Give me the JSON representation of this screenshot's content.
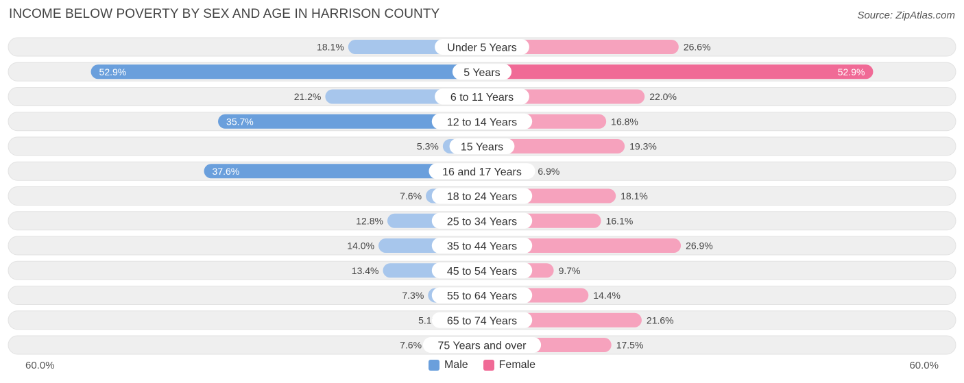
{
  "title": "INCOME BELOW POVERTY BY SEX AND AGE IN HARRISON COUNTY",
  "source": "Source: ZipAtlas.com",
  "colors": {
    "male_dark": "#6a9fdc",
    "male_light": "#a7c6ec",
    "female_dark": "#f06a96",
    "female_light": "#f6a2bd",
    "row_bg": "#efefef"
  },
  "chart_data": {
    "type": "bar",
    "orientation": "horizontal-diverging",
    "title": "INCOME BELOW POVERTY BY SEX AND AGE IN HARRISON COUNTY",
    "categories": [
      "Under 5 Years",
      "5 Years",
      "6 to 11 Years",
      "12 to 14 Years",
      "15 Years",
      "16 and 17 Years",
      "18 to 24 Years",
      "25 to 34 Years",
      "35 to 44 Years",
      "45 to 54 Years",
      "55 to 64 Years",
      "65 to 74 Years",
      "75 Years and over"
    ],
    "series": [
      {
        "name": "Male",
        "values": [
          18.1,
          52.9,
          21.2,
          35.7,
          5.3,
          37.6,
          7.6,
          12.8,
          14.0,
          13.4,
          7.3,
          5.1,
          7.6
        ],
        "labels": [
          "18.1%",
          "52.9%",
          "21.2%",
          "35.7%",
          "5.3%",
          "37.6%",
          "7.6%",
          "12.8%",
          "14.0%",
          "13.4%",
          "7.3%",
          "5.1%",
          "7.6%"
        ]
      },
      {
        "name": "Female",
        "values": [
          26.6,
          52.9,
          22.0,
          16.8,
          19.3,
          6.9,
          18.1,
          16.1,
          26.9,
          9.7,
          14.4,
          21.6,
          17.5
        ],
        "labels": [
          "26.6%",
          "52.9%",
          "22.0%",
          "16.8%",
          "19.3%",
          "6.9%",
          "18.1%",
          "16.1%",
          "26.9%",
          "9.7%",
          "14.4%",
          "21.6%",
          "17.5%"
        ]
      }
    ],
    "xlim": [
      -60,
      60
    ],
    "axis_labels": {
      "left": "60.0%",
      "right": "60.0%"
    },
    "legend": [
      "Male",
      "Female"
    ],
    "legend_position": "bottom-center"
  }
}
